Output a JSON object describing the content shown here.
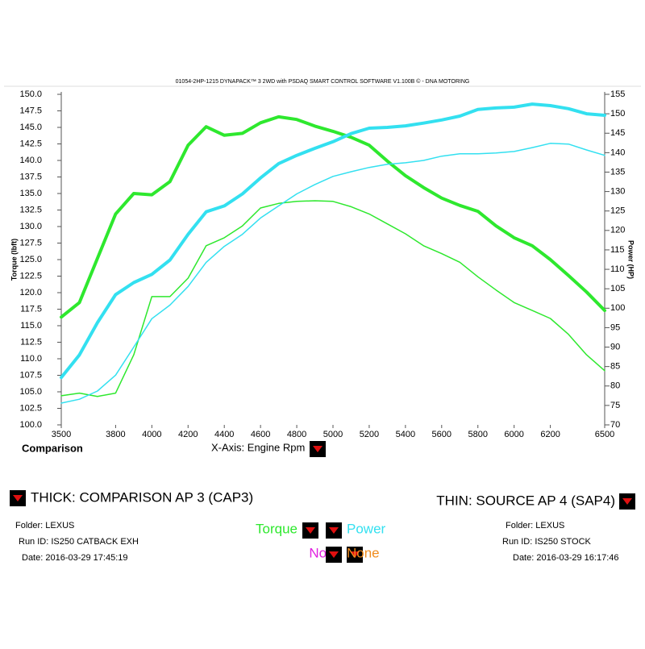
{
  "chart_data": {
    "type": "line",
    "title": "01054-2HP-1215 DYNAPACK™ 3 2WD with PSDAQ SMART CONTROL SOFTWARE V1.100B © - DNA MOTORING",
    "corner_label": "Comparison",
    "x_label": "X-Axis: Engine Rpm",
    "y_label": "Torque (lbft)",
    "y2_label": "Power (HP)",
    "x": [
      3500,
      3600,
      3700,
      3800,
      3900,
      4000,
      4100,
      4200,
      4300,
      4400,
      4500,
      4600,
      4700,
      4800,
      4900,
      5000,
      5100,
      5200,
      5300,
      5400,
      5500,
      5600,
      5700,
      5800,
      5900,
      6000,
      6100,
      6200,
      6300,
      6400,
      6500
    ],
    "xlim": [
      3500,
      6500
    ],
    "xticks": [
      3500,
      3800,
      4000,
      4200,
      4400,
      4600,
      4800,
      5000,
      5200,
      5400,
      5600,
      5800,
      6000,
      6200,
      6500
    ],
    "ylim": [
      100,
      150
    ],
    "yticks": [
      {
        "value": 100,
        "label": "100.0"
      },
      {
        "value": 102.5,
        "label": "102.5"
      },
      {
        "value": 105,
        "label": "105.0"
      },
      {
        "value": 107.5,
        "label": "107.5"
      },
      {
        "value": 110,
        "label": "110.0"
      },
      {
        "value": 112.5,
        "label": "112.5"
      },
      {
        "value": 115,
        "label": "115.0"
      },
      {
        "value": 117.5,
        "label": "117.5"
      },
      {
        "value": 120,
        "label": "120.0"
      },
      {
        "value": 122.5,
        "label": "122.5"
      },
      {
        "value": 125,
        "label": "125.0"
      },
      {
        "value": 127.5,
        "label": "127.5"
      },
      {
        "value": 130,
        "label": "130.0"
      },
      {
        "value": 132.5,
        "label": "132.5"
      },
      {
        "value": 135,
        "label": "135.0"
      },
      {
        "value": 137.5,
        "label": "137.5"
      },
      {
        "value": 140,
        "label": "140.0"
      },
      {
        "value": 142.5,
        "label": "142.5"
      },
      {
        "value": 145,
        "label": "145.0"
      },
      {
        "value": 147.5,
        "label": "147.5"
      },
      {
        "value": 150,
        "label": "150.0"
      }
    ],
    "y2lim": [
      70,
      155
    ],
    "y2ticks": [
      70,
      75,
      80,
      85,
      90,
      95,
      100,
      105,
      110,
      115,
      120,
      125,
      130,
      135,
      140,
      145,
      150,
      155
    ],
    "grid": false,
    "series": [
      {
        "color": "#2ee82e",
        "line_width": 4,
        "values": [
          116.3,
          118.5,
          125.2,
          131.9,
          135.0,
          134.8,
          136.8,
          142.3,
          145.1,
          143.8,
          144.1,
          145.7,
          146.6,
          146.2,
          145.2,
          144.4,
          143.5,
          142.3,
          139.9,
          137.7,
          135.9,
          134.3,
          133.2,
          132.3,
          130.1,
          128.3,
          127.1,
          125.0,
          122.6,
          120.1,
          117.3
        ]
      },
      {
        "color": "#33e0f0",
        "line_width": 4,
        "axis": "y2",
        "values": [
          82.2,
          88.0,
          96.3,
          103.5,
          106.6,
          108.7,
          112.4,
          119.0,
          124.8,
          126.3,
          129.4,
          133.5,
          137.2,
          139.3,
          141.1,
          142.8,
          144.9,
          146.3,
          146.5,
          146.9,
          147.6,
          148.4,
          149.4,
          151.1,
          151.5,
          151.7,
          152.5,
          152.1,
          151.3,
          150.0,
          149.6
        ]
      },
      {
        "color": "#2ee82e",
        "line_width": 1.5,
        "values": [
          104.4,
          104.8,
          104.3,
          104.8,
          110.6,
          119.4,
          119.4,
          122.2,
          127.1,
          128.3,
          130.1,
          132.8,
          133.5,
          133.8,
          133.9,
          133.8,
          133.0,
          131.9,
          130.4,
          128.9,
          127.1,
          125.9,
          124.6,
          122.4,
          120.4,
          118.5,
          117.3,
          116.1,
          113.7,
          110.6,
          108.2
        ]
      },
      {
        "color": "#33e0f0",
        "line_width": 1.5,
        "axis": "y2",
        "values": [
          75.6,
          76.6,
          78.7,
          82.8,
          90.0,
          97.3,
          100.8,
          105.6,
          111.8,
          115.9,
          119.0,
          123.2,
          126.3,
          129.4,
          131.8,
          133.9,
          135.1,
          136.2,
          137.0,
          137.4,
          138.0,
          139.1,
          139.7,
          139.7,
          139.9,
          140.3,
          141.3,
          142.4,
          142.2,
          140.7,
          139.3
        ]
      }
    ]
  },
  "panel": {
    "left": {
      "title": "THICK: COMPARISON AP 3 (CAP3)",
      "folder": "Folder: LEXUS",
      "run_id": "Run ID: IS250 CATBACK EXH",
      "date": "Date: 2016-03-29 17:45:19"
    },
    "right": {
      "title": "THIN: SOURCE AP 4 (SAP4)",
      "folder": "Folder: LEXUS",
      "run_id": "Run ID: IS250 STOCK",
      "date": "Date: 2016-03-29 16:17:46"
    },
    "selectors": [
      {
        "text": "Torque",
        "color": "#2ee82e"
      },
      {
        "text": "Power",
        "color": "#33e0f0"
      },
      {
        "text": "None",
        "color": "#e020e0"
      },
      {
        "text": "None",
        "color": "#f08c1e"
      }
    ]
  }
}
